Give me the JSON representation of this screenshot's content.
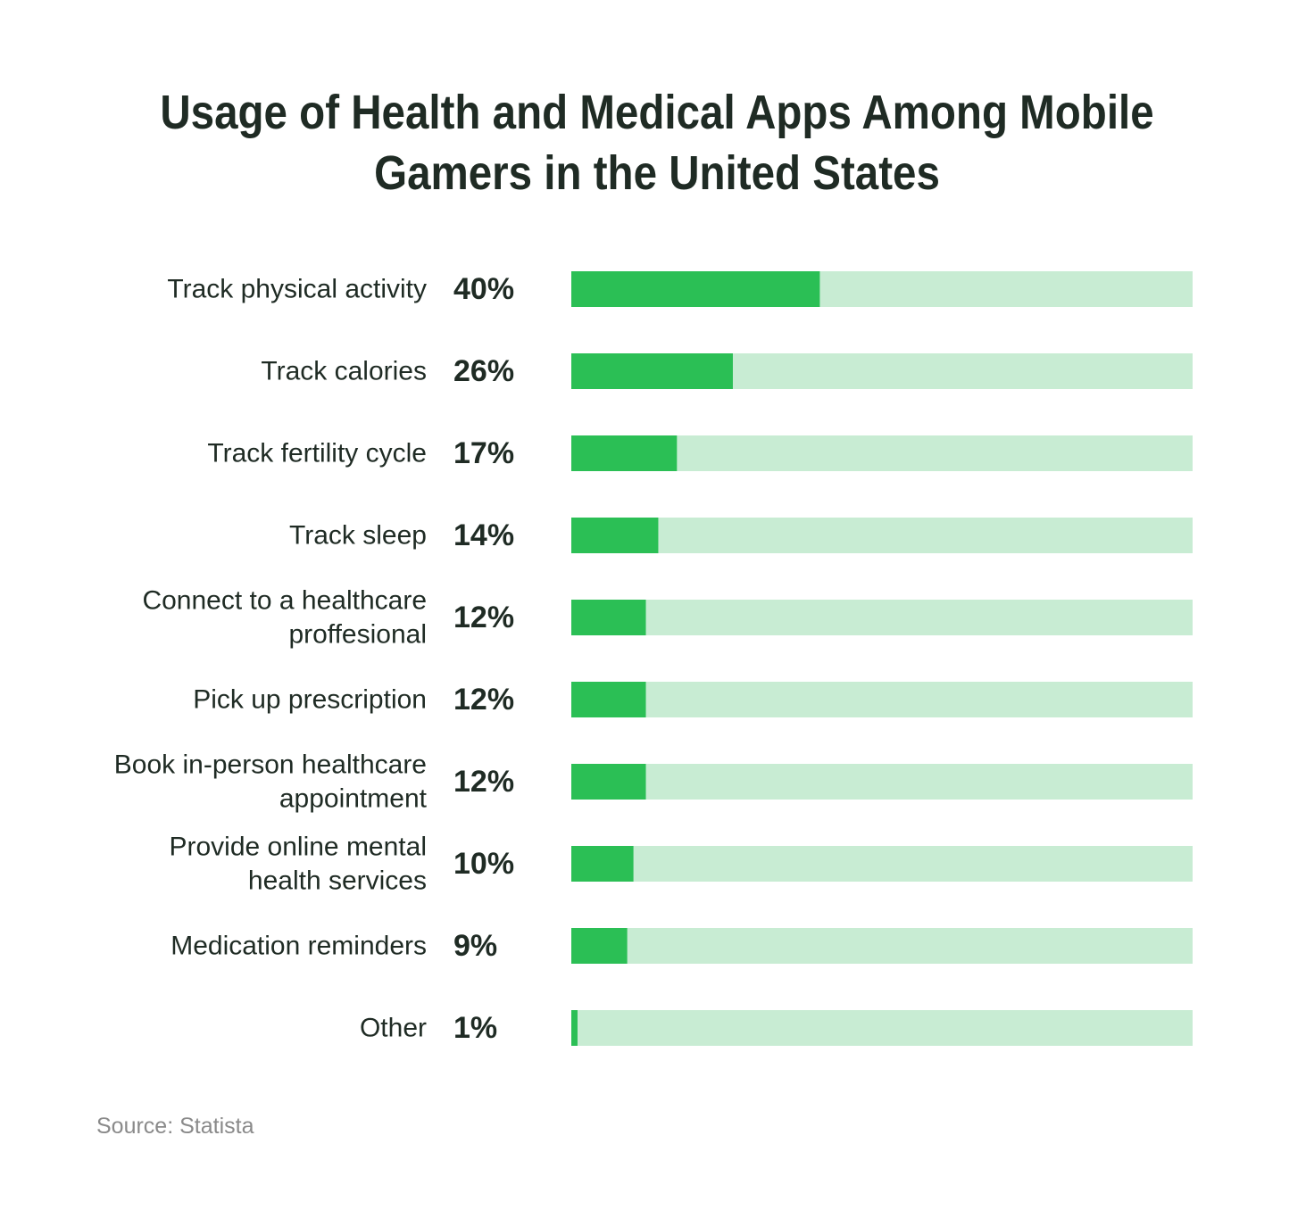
{
  "chart_data": {
    "type": "bar",
    "orientation": "horizontal",
    "title_lines": [
      "Usage of Health and Medical Apps Among Mobile",
      "Gamers in the United States"
    ],
    "categories": [
      [
        "Track physical activity"
      ],
      [
        "Track calories"
      ],
      [
        "Track fertility cycle"
      ],
      [
        "Track sleep"
      ],
      [
        "Connect to a healthcare",
        "proffesional"
      ],
      [
        "Pick up prescription"
      ],
      [
        "Book in-person healthcare",
        "appointment"
      ],
      [
        "Provide online mental",
        "health services"
      ],
      [
        "Medication reminders"
      ],
      [
        "Other"
      ]
    ],
    "values": [
      40,
      26,
      17,
      14,
      12,
      12,
      12,
      10,
      9,
      1
    ],
    "value_labels": [
      "40%",
      "26%",
      "17%",
      "14%",
      "12%",
      "12%",
      "12%",
      "10%",
      "9%",
      "1%"
    ],
    "xlim": [
      0,
      100
    ],
    "xlabel": "",
    "ylabel": "",
    "grid": false,
    "legend": "none",
    "colors": {
      "bar": "#2bbf55",
      "track": "#c8ecd3",
      "text": "#1f2b24"
    }
  },
  "source": "Source: Statista"
}
